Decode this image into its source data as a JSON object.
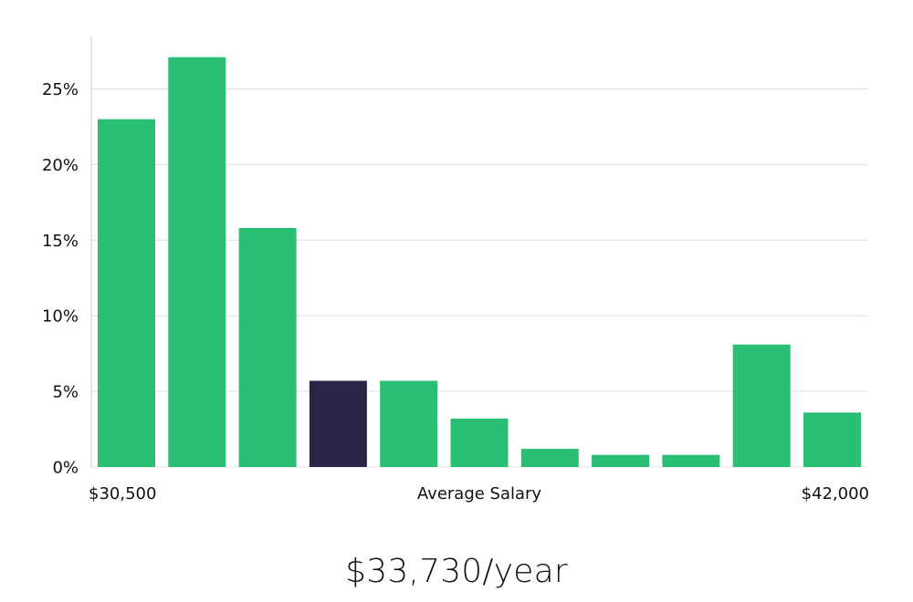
{
  "chart_data": {
    "type": "bar",
    "title": "",
    "xlabel": "Average Salary",
    "ylabel": "",
    "x_range_labels": {
      "min": "$30,500",
      "max": "$42,000"
    },
    "ylim": [
      0,
      28
    ],
    "yticks": [
      0,
      5,
      10,
      15,
      20,
      25
    ],
    "ytick_labels": [
      "0%",
      "5%",
      "10%",
      "15%",
      "20%",
      "25%"
    ],
    "grid": true,
    "values": [
      23.0,
      27.1,
      15.8,
      5.7,
      5.7,
      3.2,
      1.2,
      0.8,
      0.8,
      8.1,
      3.6
    ],
    "highlight_index": 3,
    "colors": {
      "bar": "#2bbf76",
      "highlight": "#2a2547",
      "grid": "#dddddd",
      "axis": "#cccccc"
    }
  },
  "summary": {
    "salary_text": "$33,730/year"
  }
}
